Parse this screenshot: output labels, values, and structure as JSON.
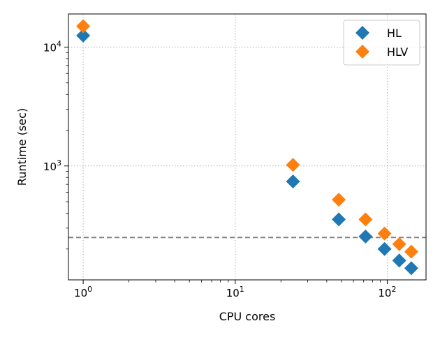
{
  "chart_data": {
    "type": "scatter",
    "title": "",
    "xlabel": "CPU cores",
    "ylabel": "Runtime (sec)",
    "xscale": "log",
    "yscale": "log",
    "xlim": [
      0.8,
      180
    ],
    "ylim": [
      110,
      19000
    ],
    "x_ticks": [
      {
        "value": 1,
        "base": "10",
        "exp": "0"
      },
      {
        "value": 10,
        "base": "10",
        "exp": "1"
      },
      {
        "value": 100,
        "base": "10",
        "exp": "2"
      }
    ],
    "y_ticks": [
      {
        "value": 1000,
        "base": "10",
        "exp": "3"
      },
      {
        "value": 10000,
        "base": "10",
        "exp": "4"
      }
    ],
    "grid": true,
    "reference_line": {
      "y": 250,
      "style": "dashed",
      "color": "#808080"
    },
    "legend": {
      "position": "top-right"
    },
    "series": [
      {
        "name": "HL",
        "color": "#1f77b4",
        "marker": "diamond",
        "x": [
          1,
          24,
          48,
          72,
          96,
          120,
          144
        ],
        "y": [
          12500,
          740,
          355,
          255,
          200,
          160,
          138
        ]
      },
      {
        "name": "HLV",
        "color": "#ff7f0e",
        "marker": "diamond",
        "x": [
          1,
          24,
          48,
          72,
          96,
          120,
          144
        ],
        "y": [
          15000,
          1020,
          520,
          355,
          270,
          220,
          190
        ]
      }
    ]
  }
}
